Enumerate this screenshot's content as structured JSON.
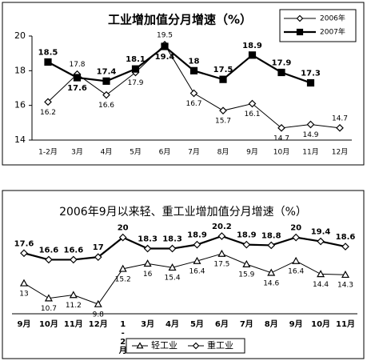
{
  "chart_data": [
    {
      "type": "line",
      "title": "工业增加值分月增速（%）",
      "categories": [
        "1-2月",
        "3月",
        "4月",
        "5月",
        "6月",
        "7月",
        "8月",
        "9月",
        "10月",
        "11月",
        "12月"
      ],
      "series": [
        {
          "name": "2006年",
          "color": "#000000",
          "marker": "diamond",
          "values": [
            16.2,
            17.8,
            16.6,
            17.9,
            19.5,
            16.7,
            15.7,
            16.1,
            14.7,
            14.9,
            14.7
          ]
        },
        {
          "name": "2007年",
          "color": "#000000",
          "marker": "square",
          "values": [
            18.5,
            17.6,
            17.4,
            18.1,
            19.4,
            18,
            17.5,
            18.9,
            17.9,
            17.3,
            null
          ]
        }
      ],
      "ylim": [
        14,
        20
      ],
      "yticks": [
        14,
        16,
        18,
        20
      ],
      "legend": "top-right"
    },
    {
      "type": "line",
      "title": "2006年9月以来轻、重工业增加值分月增速（%）",
      "categories": [
        "9月",
        "10月",
        "11月",
        "12月",
        "1-2月",
        "3月",
        "4月",
        "5月",
        "6月",
        "7月",
        "8月",
        "9月",
        "10月",
        "11月"
      ],
      "series": [
        {
          "name": "轻工业",
          "color": "#000000",
          "marker": "triangle",
          "values": [
            13,
            10.7,
            11.2,
            9.8,
            15.2,
            16,
            15.4,
            16.4,
            17.5,
            15.9,
            14.6,
            16.4,
            14.4,
            14.3
          ]
        },
        {
          "name": "重工业",
          "color": "#000000",
          "marker": "diamond",
          "values": [
            17.6,
            16.6,
            16.6,
            17,
            20,
            18.3,
            18.3,
            18.9,
            20.2,
            18.9,
            18.8,
            20,
            19.4,
            18.6
          ]
        }
      ],
      "legend": "bottom"
    }
  ]
}
